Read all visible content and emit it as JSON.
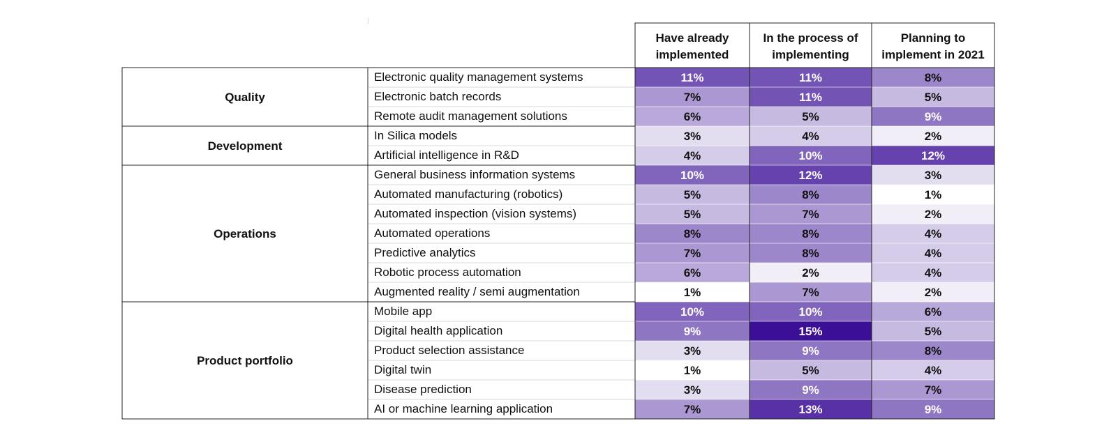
{
  "chart_data": {
    "type": "heatmap",
    "columns": [
      "Have already implemented",
      "In the process of implementing",
      "Planning to implement in 2021"
    ],
    "column_lines": [
      [
        "Have already",
        "implemented"
      ],
      [
        "In the process of",
        "implementing"
      ],
      [
        "Planning to",
        "implement in 2021"
      ]
    ],
    "value_suffix": "%",
    "color_scale": {
      "low": "#ffffff",
      "high": "#3b0f96"
    },
    "vmin": 1,
    "vmax": 15,
    "groups": [
      {
        "name": "Quality",
        "rows": [
          {
            "label": "Electronic quality management systems",
            "values": [
              11,
              11,
              8
            ]
          },
          {
            "label": "Electronic batch records",
            "values": [
              7,
              11,
              5
            ]
          },
          {
            "label": "Remote audit management solutions",
            "values": [
              6,
              5,
              9
            ]
          }
        ]
      },
      {
        "name": "Development",
        "rows": [
          {
            "label": "In Silica models",
            "values": [
              3,
              4,
              2
            ]
          },
          {
            "label": "Artificial intelligence in R&D",
            "values": [
              4,
              10,
              12
            ]
          }
        ]
      },
      {
        "name": "Operations",
        "rows": [
          {
            "label": "General business information systems",
            "values": [
              10,
              12,
              3
            ]
          },
          {
            "label": "Automated manufacturing (robotics)",
            "values": [
              5,
              8,
              1
            ]
          },
          {
            "label": "Automated inspection (vision systems)",
            "values": [
              5,
              7,
              2
            ]
          },
          {
            "label": "Automated operations",
            "values": [
              8,
              8,
              4
            ]
          },
          {
            "label": "Predictive analytics",
            "values": [
              7,
              8,
              4
            ]
          },
          {
            "label": "Robotic process automation",
            "values": [
              6,
              2,
              4
            ]
          },
          {
            "label": "Augmented reality / semi augmentation",
            "values": [
              1,
              7,
              2
            ]
          }
        ]
      },
      {
        "name": "Product portfolio",
        "rows": [
          {
            "label": "Mobile app",
            "values": [
              10,
              10,
              6
            ]
          },
          {
            "label": "Digital health application",
            "values": [
              9,
              15,
              5
            ]
          },
          {
            "label": "Product selection assistance",
            "values": [
              3,
              9,
              8
            ]
          },
          {
            "label": "Digital twin",
            "values": [
              1,
              5,
              4
            ]
          },
          {
            "label": "Disease prediction",
            "values": [
              3,
              9,
              7
            ]
          },
          {
            "label": "AI or machine learning application",
            "values": [
              7,
              13,
              9
            ]
          }
        ]
      }
    ]
  }
}
